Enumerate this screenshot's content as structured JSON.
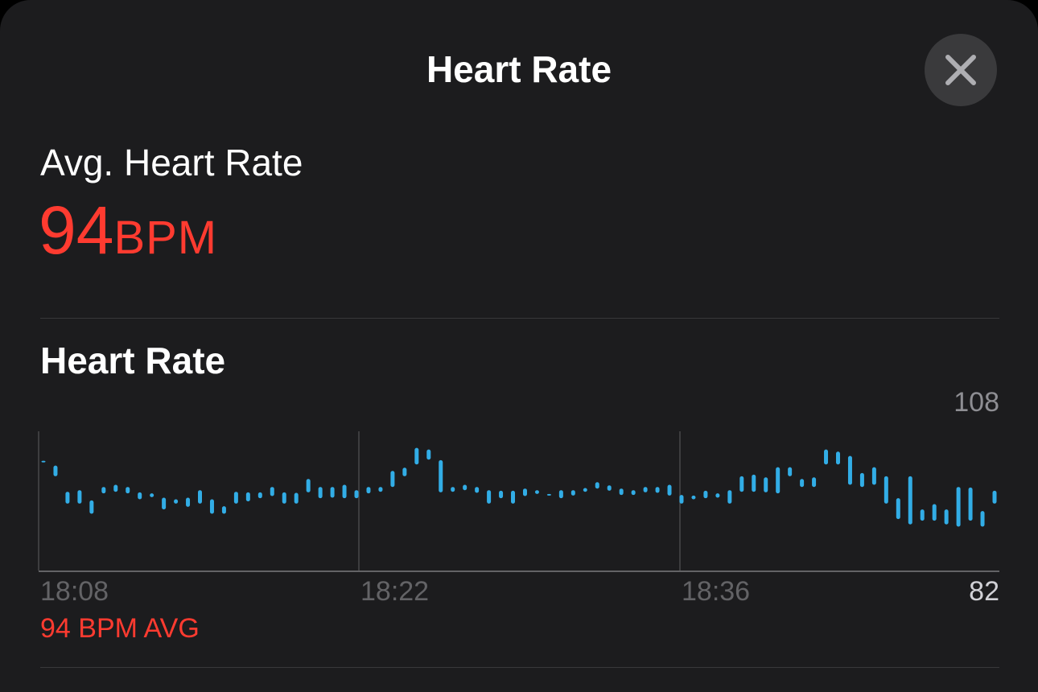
{
  "header": {
    "title": "Heart Rate"
  },
  "close_button": {
    "icon": "close-icon"
  },
  "summary": {
    "label": "Avg. Heart Rate",
    "value": "94",
    "unit": "BPM"
  },
  "section": {
    "title": "Heart Rate"
  },
  "chart_caption": "94 BPM AVG",
  "colors": {
    "accent": "#ff3b30",
    "bar": "#32ade6",
    "background": "#1c1c1e"
  },
  "chart_data": {
    "type": "bar",
    "title": "",
    "xlabel": "",
    "ylabel": "",
    "ylim": [
      82,
      108
    ],
    "y_labels": [
      "108",
      "82"
    ],
    "x_ticks": [
      "18:08",
      "18:22",
      "18:36"
    ],
    "grid": true,
    "series": [
      {
        "values": [
          [
            102.3,
            102.5
          ],
          [
            99.6,
            101.6
          ],
          [
            94.5,
            96.7
          ],
          [
            94.5,
            97.0
          ],
          [
            92.6,
            95.1
          ],
          [
            96.4,
            97.6
          ],
          [
            96.7,
            98.0
          ],
          [
            96.4,
            97.6
          ],
          [
            95.3,
            96.6
          ],
          [
            95.7,
            96.4
          ],
          [
            93.4,
            95.6
          ],
          [
            94.5,
            95.3
          ],
          [
            93.9,
            95.6
          ],
          [
            94.5,
            97.0
          ],
          [
            92.6,
            95.3
          ],
          [
            92.6,
            94.0
          ],
          [
            94.5,
            96.7
          ],
          [
            94.9,
            96.6
          ],
          [
            95.5,
            96.6
          ],
          [
            95.9,
            97.6
          ],
          [
            94.5,
            96.6
          ],
          [
            94.5,
            96.5
          ],
          [
            96.6,
            99.1
          ],
          [
            95.5,
            97.6
          ],
          [
            95.6,
            97.6
          ],
          [
            95.5,
            98.0
          ],
          [
            95.5,
            97.0
          ],
          [
            96.4,
            97.6
          ],
          [
            96.7,
            97.6
          ],
          [
            97.6,
            100.6
          ],
          [
            99.6,
            101.2
          ],
          [
            101.8,
            104.9
          ],
          [
            102.7,
            104.6
          ],
          [
            96.6,
            102.6
          ],
          [
            96.7,
            97.6
          ],
          [
            97.0,
            98.0
          ],
          [
            96.5,
            97.6
          ],
          [
            94.5,
            97.0
          ],
          [
            95.5,
            96.9
          ],
          [
            94.5,
            96.9
          ],
          [
            95.9,
            97.3
          ],
          [
            96.3,
            97.0
          ],
          [
            96.1,
            96.3
          ],
          [
            95.5,
            97.0
          ],
          [
            96.0,
            97.0
          ],
          [
            96.7,
            97.4
          ],
          [
            97.3,
            98.5
          ],
          [
            96.9,
            97.9
          ],
          [
            96.1,
            97.3
          ],
          [
            96.1,
            97.0
          ],
          [
            96.6,
            97.6
          ],
          [
            96.5,
            97.6
          ],
          [
            96.0,
            98.0
          ],
          [
            94.5,
            96.1
          ],
          [
            95.3,
            96.0
          ],
          [
            95.5,
            96.9
          ],
          [
            95.6,
            96.4
          ],
          [
            94.5,
            97.0
          ],
          [
            96.7,
            99.6
          ],
          [
            96.7,
            99.9
          ],
          [
            96.6,
            99.4
          ],
          [
            96.4,
            101.3
          ],
          [
            99.6,
            101.3
          ],
          [
            97.6,
            99.1
          ],
          [
            97.6,
            99.4
          ],
          [
            101.8,
            104.6
          ],
          [
            101.8,
            104.2
          ],
          [
            98.0,
            103.4
          ],
          [
            97.6,
            100.2
          ],
          [
            98.0,
            101.3
          ],
          [
            94.5,
            99.6
          ],
          [
            91.6,
            95.5
          ],
          [
            90.6,
            99.6
          ],
          [
            91.3,
            93.4
          ],
          [
            91.3,
            94.4
          ],
          [
            90.6,
            93.4
          ],
          [
            90.2,
            97.6
          ],
          [
            91.3,
            97.5
          ],
          [
            90.2,
            93.1
          ],
          [
            94.5,
            96.9
          ]
        ]
      }
    ]
  }
}
